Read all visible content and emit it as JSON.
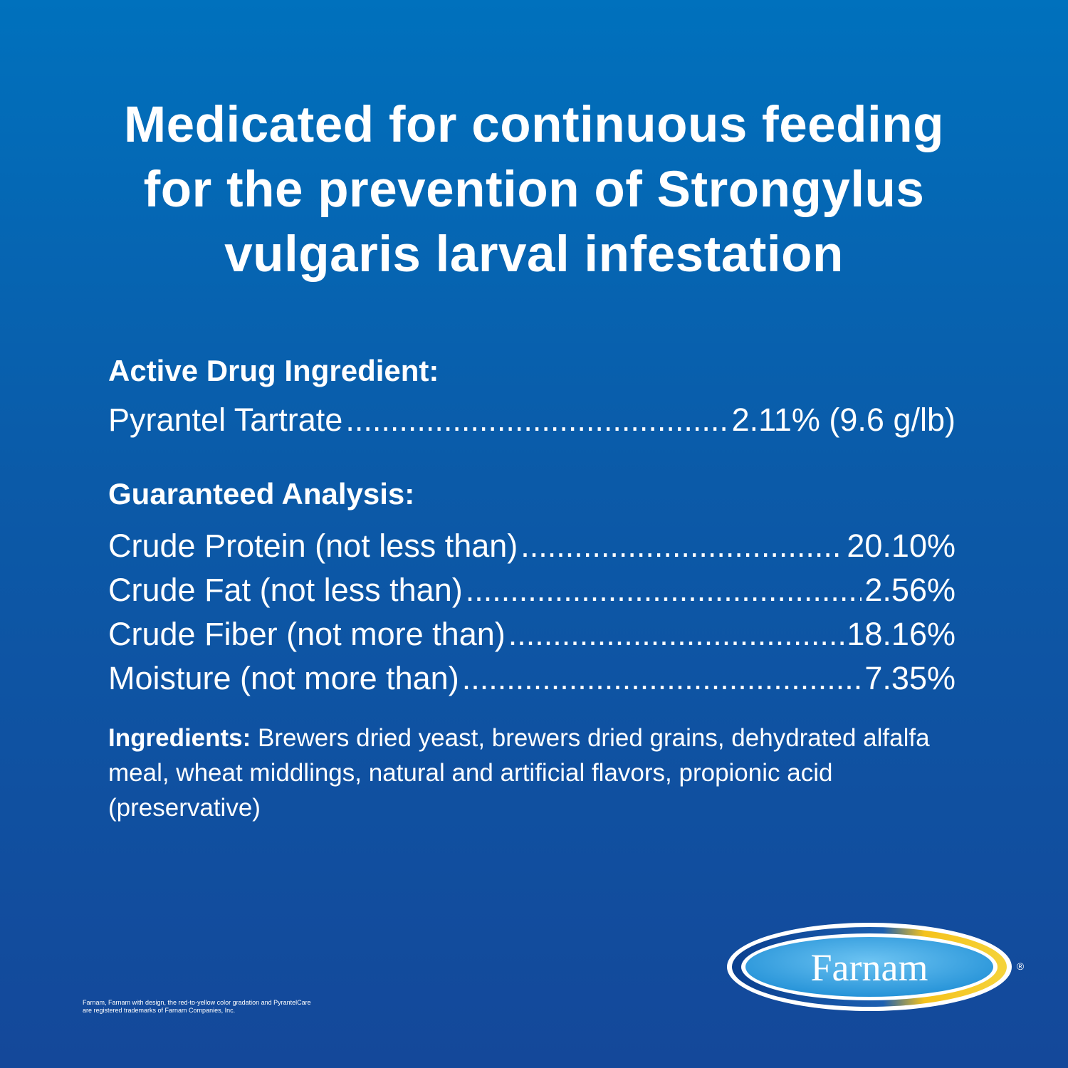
{
  "headline": {
    "line1": "Medicated for continuous feeding",
    "line2": "for the prevention of Strongylus",
    "line3": "vulgaris larval infestation"
  },
  "active": {
    "title": "Active Drug Ingredient:",
    "items": [
      {
        "label": "Pyrantel Tartrate ",
        "value": "2.11% (9.6 g/lb)"
      }
    ]
  },
  "analysis": {
    "title": "Guaranteed Analysis:",
    "items": [
      {
        "label": "Crude Protein (not less than)",
        "value": "20.10%"
      },
      {
        "label": "Crude Fat (not less than)",
        "value": "2.56%"
      },
      {
        "label": "Crude Fiber (not more than) ",
        "value": "18.16%"
      },
      {
        "label": "Moisture (not more than)",
        "value": "7.35%"
      }
    ]
  },
  "ingredients": {
    "label": "Ingredients:",
    "text": " Brewers dried yeast, brewers dried grains, dehydrated alfalfa meal, wheat middlings, natural and artificial flavors, propionic acid (preservative)"
  },
  "trademark": {
    "line1": "Farnam, Farnam with design, the red-to-yellow color gradation and PyrantelCare",
    "line2": "are registered trademarks of Farnam Companies, Inc."
  },
  "logo": {
    "text": "Farnam",
    "registered": "®",
    "colors": {
      "ring": "#f5c21b",
      "ring_dark": "#0a3f8f",
      "inner": "#3ea9e8",
      "text": "#ffffff"
    }
  },
  "colors": {
    "background_top": "#0071bd",
    "background_bottom": "#14489a",
    "text": "#ffffff"
  }
}
